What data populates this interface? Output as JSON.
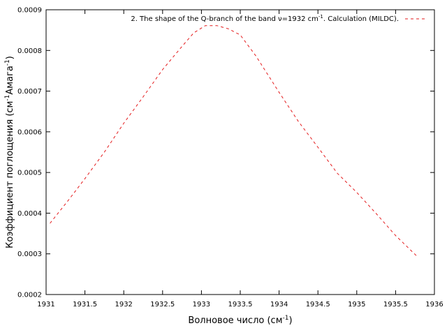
{
  "chart_data": {
    "type": "line",
    "xlabel": "Волновое число (см",
    "xlabel_sup": "-1",
    "xlabel_end": ")",
    "ylabel": "Коэффициент поглощения (см",
    "ylabel_sup1": "-1",
    "ylabel_mid": "Амага",
    "ylabel_sup2": "-1",
    "ylabel_end": ")",
    "xlim": [
      1931,
      1936
    ],
    "ylim": [
      0.0002,
      0.0009
    ],
    "xticks": [
      "1931",
      "1931.5",
      "1932",
      "1932.5",
      "1933",
      "1933.5",
      "1934",
      "1934.5",
      "1935",
      "1935.5",
      "1936"
    ],
    "yticks": [
      "0.0002",
      "0.0003",
      "0.0004",
      "0.0005",
      "0.0006",
      "0.0007",
      "0.0008",
      "0.0009"
    ],
    "legend_placement": "top-right",
    "series": [
      {
        "name": "2. The shape of the Q-branch of the band ν=1932 cm",
        "name_sup": "-1",
        "name_end": ". Calculation (MILDC).",
        "color": "#e41a1c",
        "style": "dashed",
        "x": [
          1931.05,
          1931.3,
          1931.5,
          1931.75,
          1932.0,
          1932.25,
          1932.5,
          1932.75,
          1932.9,
          1933.05,
          1933.2,
          1933.35,
          1933.5,
          1933.7,
          1934.0,
          1934.25,
          1934.5,
          1934.75,
          1935.0,
          1935.25,
          1935.5,
          1935.77
        ],
        "y": [
          0.000375,
          0.000435,
          0.000485,
          0.00055,
          0.000621,
          0.000686,
          0.000753,
          0.00081,
          0.000843,
          0.000861,
          0.000861,
          0.000853,
          0.000838,
          0.000787,
          0.000697,
          0.000625,
          0.000562,
          0.000498,
          0.000451,
          0.000399,
          0.000345,
          0.000295
        ]
      }
    ]
  }
}
